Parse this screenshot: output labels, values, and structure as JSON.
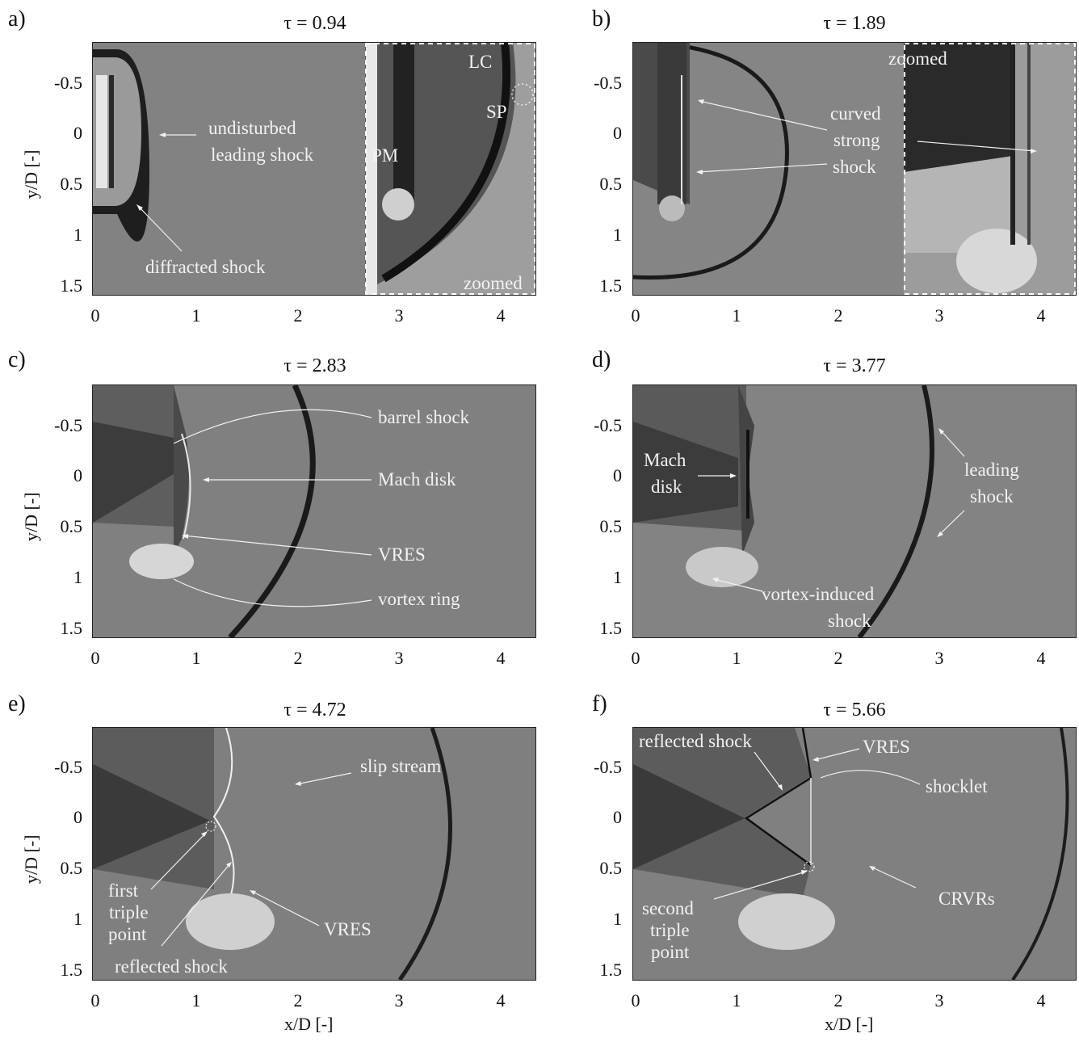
{
  "panels": [
    {
      "id": "a",
      "letter": "a)",
      "title": "τ = 0.94"
    },
    {
      "id": "b",
      "letter": "b)",
      "title": "τ = 1.89"
    },
    {
      "id": "c",
      "letter": "c)",
      "title": "τ = 2.83"
    },
    {
      "id": "d",
      "letter": "d)",
      "title": "τ = 3.77"
    },
    {
      "id": "e",
      "letter": "e)",
      "title": "τ = 4.72"
    },
    {
      "id": "f",
      "letter": "f)",
      "title": "τ = 5.66"
    }
  ],
  "axes": {
    "ylabel": "y/D [-]",
    "xlabel": "x/D [-]",
    "yticks": [
      "-0.5",
      "0",
      "0.5",
      "1",
      "1.5"
    ],
    "xticks": [
      "0",
      "1",
      "2",
      "3",
      "4"
    ]
  },
  "annotations": {
    "a": {
      "undisturbed": "undisturbed",
      "leading_shock": "leading shock",
      "diffracted": "diffracted shock",
      "lc": "LC",
      "sp": "SP",
      "pm": "PM",
      "zoomed": "zoomed"
    },
    "b": {
      "zoomed": "zoomed",
      "curved": "curved",
      "strong": "strong",
      "shock": "shock"
    },
    "c": {
      "barrel": "barrel shock",
      "mach": "Mach disk",
      "vres": "VRES",
      "vortex": "vortex ring"
    },
    "d": {
      "mach1": "Mach",
      "mach2": "disk",
      "leading1": "leading",
      "leading2": "shock",
      "vortex1": "vortex-induced",
      "vortex2": "shock"
    },
    "e": {
      "slip": "slip stream",
      "first1": "first",
      "first2": "triple",
      "first3": "point",
      "reflected": "reflected shock",
      "vres": "VRES"
    },
    "f": {
      "reflected": "reflected shock",
      "vres": "VRES",
      "shocklet": "shocklet",
      "second1": "second",
      "second2": "triple",
      "second3": "point",
      "crvrs": "CRVRs"
    }
  }
}
